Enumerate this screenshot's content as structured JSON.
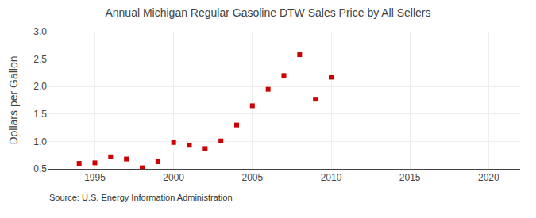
{
  "chart_data": {
    "type": "scatter",
    "title": "Annual Michigan Regular Gasoline DTW Sales Price by All Sellers",
    "ylabel": "Dollars per Gallon",
    "annotations": [
      "Source: U.S. Energy Information Administration"
    ],
    "x": [
      1994,
      1995,
      1996,
      1997,
      1998,
      1999,
      2000,
      2001,
      2002,
      2003,
      2004,
      2005,
      2006,
      2007,
      2008,
      2009,
      2010
    ],
    "values": [
      0.6,
      0.61,
      0.72,
      0.68,
      0.52,
      0.63,
      0.98,
      0.93,
      0.87,
      1.01,
      1.3,
      1.65,
      1.95,
      2.2,
      2.58,
      1.77,
      2.17
    ],
    "color": "#cc0000",
    "marker": "square",
    "xlim": [
      1992,
      2022
    ],
    "xticks": [
      1995,
      2000,
      2005,
      2010,
      2015,
      2020
    ],
    "ylim": [
      0.5,
      3.0
    ],
    "yticks": [
      0.5,
      {
        "value": 1.0,
        "label": "1.0"
      },
      1.5,
      {
        "value": 2.0,
        "label": "2.0"
      },
      2.5,
      {
        "value": 3.0,
        "label": "3.0"
      }
    ],
    "grid": true
  }
}
